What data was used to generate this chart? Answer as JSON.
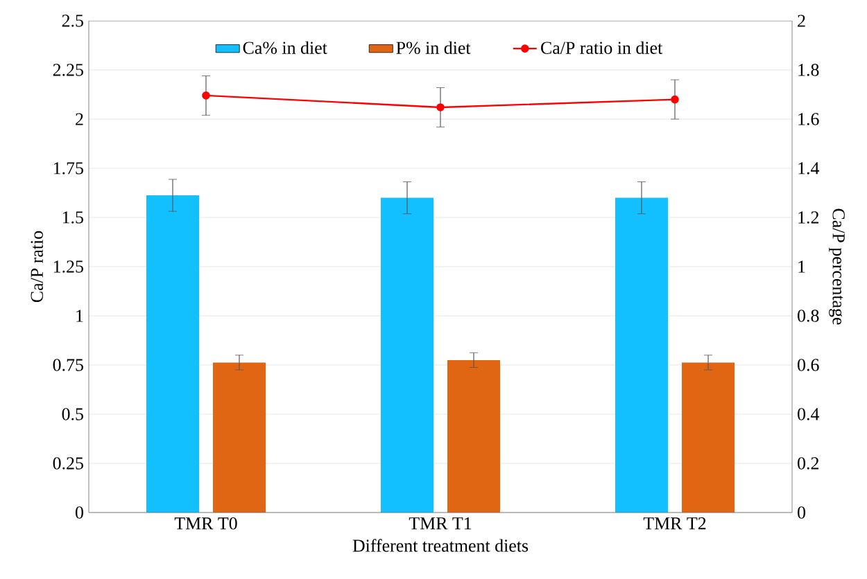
{
  "chart_data": {
    "type": "bar",
    "xlabel": "Different treatment diets",
    "ylabel": "Ca/P ratio",
    "y2label": "Ca/P percentage",
    "categories": [
      "TMR T0",
      "TMR T1",
      "TMR T2"
    ],
    "series": [
      {
        "name": "Ca% in diet",
        "color": "#12bfff",
        "values": [
          1.29,
          1.28,
          1.28
        ],
        "errors": [
          0.065,
          0.065,
          0.065
        ],
        "axis": "y2"
      },
      {
        "name": "P% in diet",
        "color": "#e06614",
        "values": [
          0.61,
          0.62,
          0.61
        ],
        "errors": [
          0.03,
          0.03,
          0.03
        ],
        "axis": "y2"
      },
      {
        "name": "Ca/P ratio in diet",
        "type": "line",
        "color": "#ff0000",
        "values": [
          2.12,
          2.06,
          2.1
        ],
        "errors": [
          0.1,
          0.1,
          0.1
        ],
        "marker": "circle"
      }
    ],
    "ylim": [
      0,
      2.5
    ],
    "yticks": [
      0,
      0.25,
      0.5,
      0.75,
      1,
      1.25,
      1.5,
      1.75,
      2,
      2.25,
      2.5
    ],
    "y2lim": [
      0,
      2
    ],
    "y2ticks": [
      0,
      0.2,
      0.4,
      0.6,
      0.8,
      1,
      1.2,
      1.4,
      1.6,
      1.8,
      2
    ],
    "grid": "y",
    "legend": "top"
  }
}
